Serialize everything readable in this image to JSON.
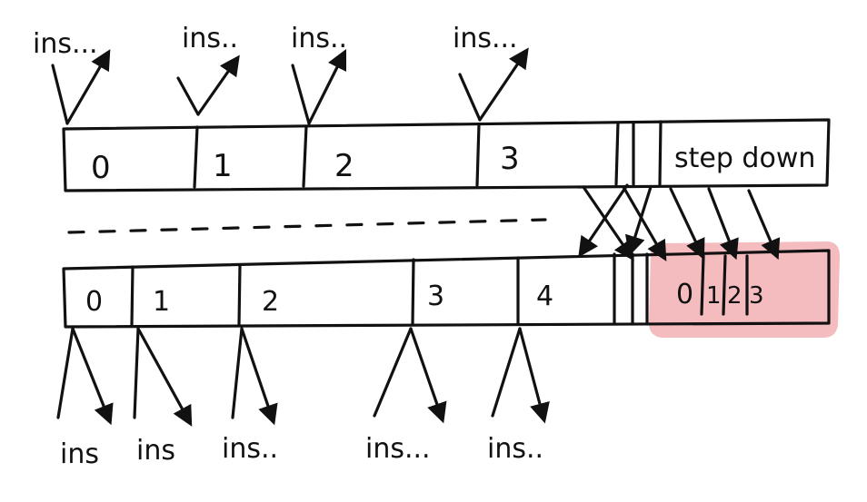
{
  "top_row": {
    "cells": [
      "0",
      "1",
      "2",
      "3"
    ],
    "step_down_label": "step down",
    "ins_labels": [
      "ins...",
      "ins..",
      "ins..",
      "ins..."
    ]
  },
  "bottom_row": {
    "cells": [
      "0",
      "1",
      "2",
      "3",
      "4"
    ],
    "highlight_cells": [
      "0",
      "1",
      "2",
      "3"
    ],
    "ins_labels": [
      "ins",
      "ins",
      "ins..",
      "ins...",
      "ins.."
    ]
  },
  "colors": {
    "ink": "#111111",
    "highlight": "#f0a6a8"
  }
}
